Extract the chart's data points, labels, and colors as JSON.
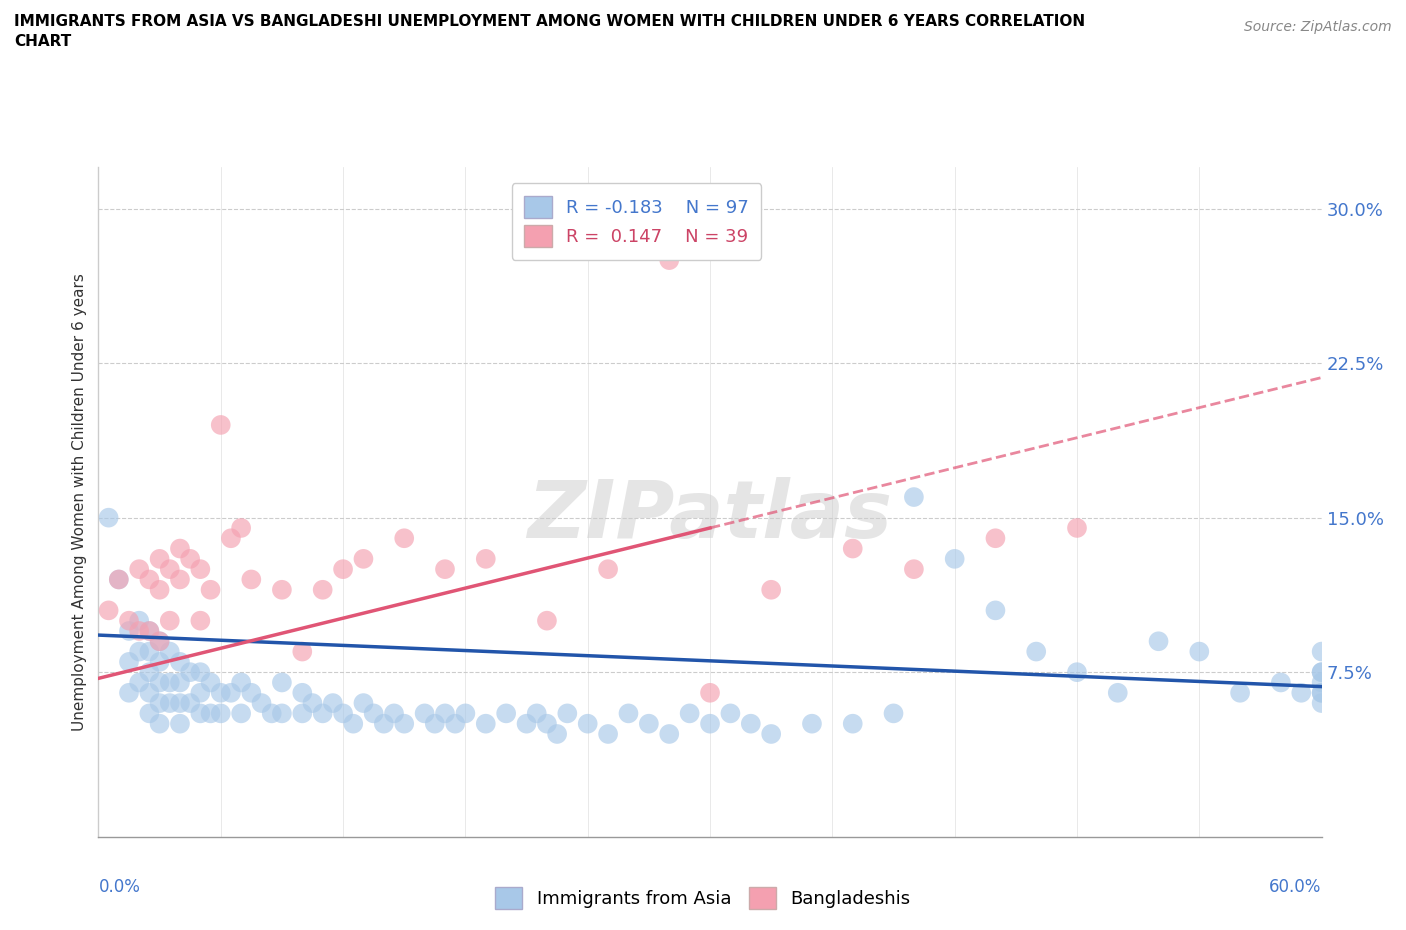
{
  "title_line1": "IMMIGRANTS FROM ASIA VS BANGLADESHI UNEMPLOYMENT AMONG WOMEN WITH CHILDREN UNDER 6 YEARS CORRELATION",
  "title_line2": "CHART",
  "source_text": "Source: ZipAtlas.com",
  "ylabel": "Unemployment Among Women with Children Under 6 years",
  "xmin": 0.0,
  "xmax": 0.6,
  "ymin": -0.005,
  "ymax": 0.32,
  "yticks": [
    0.075,
    0.15,
    0.225,
    0.3
  ],
  "ytick_labels": [
    "7.5%",
    "15.0%",
    "22.5%",
    "30.0%"
  ],
  "legend_r1": "R = -0.183",
  "legend_n1": "N = 97",
  "legend_r2": "R =  0.147",
  "legend_n2": "N = 39",
  "color_blue": "#a8c8e8",
  "color_pink": "#f4a0b0",
  "color_trendline_blue": "#2255aa",
  "color_trendline_pink": "#e05575",
  "watermark_color": "#d8d8d8",
  "blue_scatter_x": [
    0.005,
    0.01,
    0.015,
    0.015,
    0.015,
    0.02,
    0.02,
    0.02,
    0.025,
    0.025,
    0.025,
    0.025,
    0.025,
    0.03,
    0.03,
    0.03,
    0.03,
    0.03,
    0.035,
    0.035,
    0.035,
    0.04,
    0.04,
    0.04,
    0.04,
    0.045,
    0.045,
    0.05,
    0.05,
    0.05,
    0.055,
    0.055,
    0.06,
    0.06,
    0.065,
    0.07,
    0.07,
    0.075,
    0.08,
    0.085,
    0.09,
    0.09,
    0.1,
    0.1,
    0.105,
    0.11,
    0.115,
    0.12,
    0.125,
    0.13,
    0.135,
    0.14,
    0.145,
    0.15,
    0.16,
    0.165,
    0.17,
    0.175,
    0.18,
    0.19,
    0.2,
    0.21,
    0.215,
    0.22,
    0.225,
    0.23,
    0.24,
    0.25,
    0.26,
    0.27,
    0.28,
    0.29,
    0.3,
    0.31,
    0.32,
    0.33,
    0.35,
    0.37,
    0.39,
    0.4,
    0.42,
    0.44,
    0.46,
    0.48,
    0.5,
    0.52,
    0.54,
    0.56,
    0.58,
    0.59,
    0.6,
    0.6,
    0.6,
    0.6,
    0.6,
    0.6,
    0.6
  ],
  "blue_scatter_y": [
    0.15,
    0.12,
    0.095,
    0.08,
    0.065,
    0.1,
    0.085,
    0.07,
    0.095,
    0.085,
    0.075,
    0.065,
    0.055,
    0.09,
    0.08,
    0.07,
    0.06,
    0.05,
    0.085,
    0.07,
    0.06,
    0.08,
    0.07,
    0.06,
    0.05,
    0.075,
    0.06,
    0.075,
    0.065,
    0.055,
    0.07,
    0.055,
    0.065,
    0.055,
    0.065,
    0.07,
    0.055,
    0.065,
    0.06,
    0.055,
    0.07,
    0.055,
    0.065,
    0.055,
    0.06,
    0.055,
    0.06,
    0.055,
    0.05,
    0.06,
    0.055,
    0.05,
    0.055,
    0.05,
    0.055,
    0.05,
    0.055,
    0.05,
    0.055,
    0.05,
    0.055,
    0.05,
    0.055,
    0.05,
    0.045,
    0.055,
    0.05,
    0.045,
    0.055,
    0.05,
    0.045,
    0.055,
    0.05,
    0.055,
    0.05,
    0.045,
    0.05,
    0.05,
    0.055,
    0.16,
    0.13,
    0.105,
    0.085,
    0.075,
    0.065,
    0.09,
    0.085,
    0.065,
    0.07,
    0.065,
    0.075,
    0.085,
    0.065,
    0.075,
    0.07,
    0.065,
    0.06
  ],
  "pink_scatter_x": [
    0.005,
    0.01,
    0.015,
    0.02,
    0.02,
    0.025,
    0.025,
    0.03,
    0.03,
    0.03,
    0.035,
    0.035,
    0.04,
    0.04,
    0.045,
    0.05,
    0.05,
    0.055,
    0.06,
    0.065,
    0.07,
    0.075,
    0.09,
    0.1,
    0.11,
    0.12,
    0.13,
    0.15,
    0.17,
    0.19,
    0.22,
    0.25,
    0.28,
    0.3,
    0.33,
    0.37,
    0.4,
    0.44,
    0.48
  ],
  "pink_scatter_y": [
    0.105,
    0.12,
    0.1,
    0.125,
    0.095,
    0.12,
    0.095,
    0.13,
    0.115,
    0.09,
    0.125,
    0.1,
    0.135,
    0.12,
    0.13,
    0.125,
    0.1,
    0.115,
    0.195,
    0.14,
    0.145,
    0.12,
    0.115,
    0.085,
    0.115,
    0.125,
    0.13,
    0.14,
    0.125,
    0.13,
    0.1,
    0.125,
    0.275,
    0.065,
    0.115,
    0.135,
    0.125,
    0.14,
    0.145
  ]
}
